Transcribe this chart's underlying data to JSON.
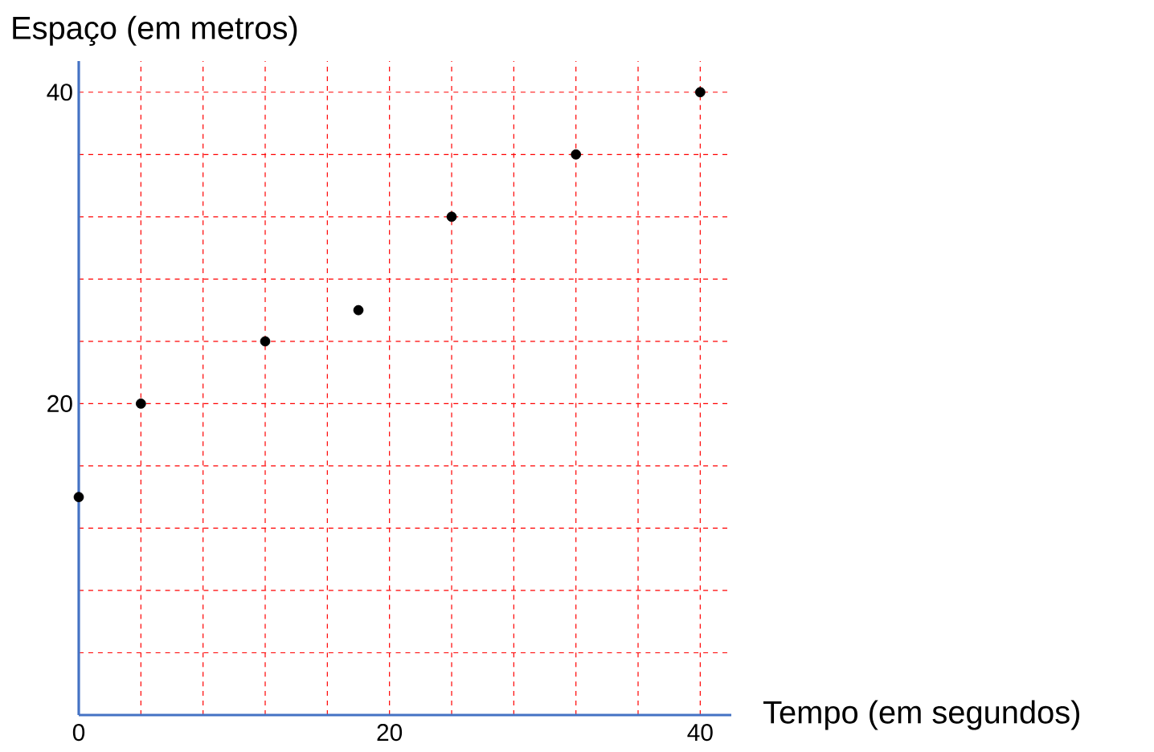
{
  "chart_data": {
    "type": "scatter",
    "xlabel": "Tempo (em segundos)",
    "ylabel": "Espaço (em metros)",
    "x": [
      0,
      4,
      12,
      18,
      24,
      32,
      40
    ],
    "series": [
      {
        "color": "#000000",
        "values": [
          14,
          20,
          24,
          26,
          32,
          36,
          40
        ]
      }
    ],
    "xlim": [
      0,
      42
    ],
    "ylim": [
      0,
      42
    ],
    "xticks": [
      {
        "value": 0,
        "label": "0"
      },
      {
        "value": 4,
        "label": null
      },
      {
        "value": 8,
        "label": null
      },
      {
        "value": 12,
        "label": null
      },
      {
        "value": 16,
        "label": null
      },
      {
        "value": 20,
        "label": "20"
      },
      {
        "value": 24,
        "label": null
      },
      {
        "value": 28,
        "label": null
      },
      {
        "value": 32,
        "label": null
      },
      {
        "value": 36,
        "label": null
      },
      {
        "value": 40,
        "label": "40"
      }
    ],
    "yticks": [
      {
        "value": 0,
        "label": null
      },
      {
        "value": 4,
        "label": null
      },
      {
        "value": 8,
        "label": null
      },
      {
        "value": 12,
        "label": null
      },
      {
        "value": 16,
        "label": null
      },
      {
        "value": 20,
        "label": "20"
      },
      {
        "value": 24,
        "label": null
      },
      {
        "value": 28,
        "label": null
      },
      {
        "value": 32,
        "label": null
      },
      {
        "value": 36,
        "label": null
      },
      {
        "value": 40,
        "label": "40"
      }
    ],
    "grid": true
  }
}
